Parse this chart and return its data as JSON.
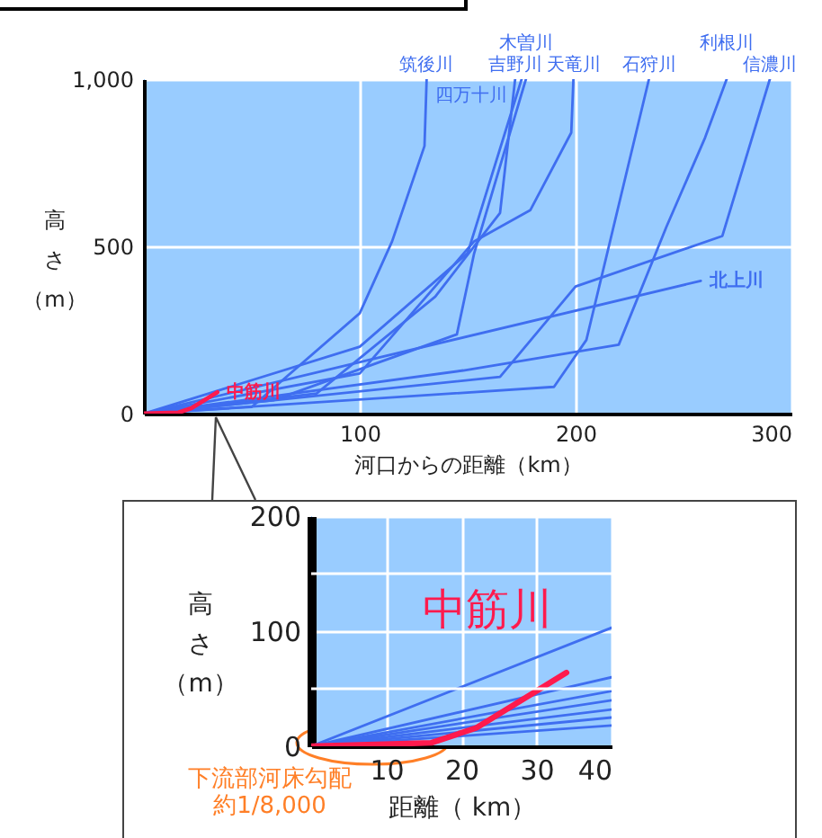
{
  "chart_data": [
    {
      "type": "line",
      "xlabel": "河口からの距離（km）",
      "ylabel": "高さ（m）",
      "xlim": [
        0,
        300
      ],
      "xticks": [
        100,
        200,
        300
      ],
      "ylim": [
        0,
        1000
      ],
      "yticks": [
        0,
        500,
        {
          "value": 1000,
          "label": "1,000"
        }
      ],
      "grid": true,
      "series": [
        {
          "name": "筑後川",
          "color": "#3f6ef0",
          "x": [
            0,
            50,
            100,
            115,
            130,
            131
          ],
          "values": [
            0,
            20,
            300,
            515,
            800,
            1000
          ]
        },
        {
          "name": "吉野川",
          "color": "#3f6ef0",
          "x": [
            0,
            80,
            135,
            165,
            172
          ],
          "values": [
            0,
            60,
            350,
            600,
            1000
          ]
        },
        {
          "name": "四万十川",
          "color": "#3f6ef0",
          "x": [
            0,
            100,
            150,
            175
          ],
          "values": [
            0,
            200,
            480,
            1000
          ]
        },
        {
          "name": "木曽川",
          "color": "#3f6ef0",
          "x": [
            0,
            60,
            145,
            153,
            177
          ],
          "values": [
            0,
            40,
            237,
            479,
            1000
          ]
        },
        {
          "name": "天竜川",
          "color": "#3f6ef0",
          "x": [
            0,
            100,
            153,
            179,
            198,
            199
          ],
          "values": [
            0,
            120,
            515,
            608,
            840,
            1000
          ]
        },
        {
          "name": "石狩川",
          "color": "#3f6ef0",
          "x": [
            0,
            190,
            205,
            234
          ],
          "values": [
            0,
            80,
            220,
            1000
          ]
        },
        {
          "name": "利根川",
          "color": "#3f6ef0",
          "x": [
            0,
            148,
            220,
            242,
            260,
            270
          ],
          "values": [
            0,
            129,
            206,
            557,
            825,
            1000
          ]
        },
        {
          "name": "信濃川",
          "color": "#3f6ef0",
          "x": [
            0,
            165,
            200,
            268,
            290
          ],
          "values": [
            0,
            110,
            380,
            531,
            1000
          ]
        },
        {
          "name": "北上川",
          "color": "#3f6ef0",
          "x": [
            0,
            258
          ],
          "values": [
            0,
            397
          ]
        },
        {
          "name": "中筋川",
          "color": "#ff1a4d",
          "x": [
            0,
            16,
            22,
            34
          ],
          "values": [
            0,
            3,
            16,
            64
          ]
        }
      ]
    },
    {
      "type": "line",
      "xlabel": "距離（ km）",
      "ylabel": "高さ（m）",
      "xlim": [
        0,
        40
      ],
      "xticks": [
        10,
        20,
        30,
        40
      ],
      "ylim": [
        0,
        200
      ],
      "yticks": [
        0,
        {
          "value": 50,
          "label": null
        },
        100,
        {
          "value": 150,
          "label": null
        },
        200
      ],
      "grid": true,
      "annotations": [
        "下流部河床勾配",
        "約1/8,000"
      ],
      "series": [
        {
          "color": "#3f6ef0",
          "x": [
            0,
            40
          ],
          "values": [
            0,
            103
          ]
        },
        {
          "color": "#3f6ef0",
          "x": [
            0,
            40
          ],
          "values": [
            0,
            60
          ]
        },
        {
          "color": "#3f6ef0",
          "x": [
            0,
            40
          ],
          "values": [
            0,
            48
          ]
        },
        {
          "color": "#3f6ef0",
          "x": [
            0,
            40
          ],
          "values": [
            0,
            40
          ]
        },
        {
          "color": "#3f6ef0",
          "x": [
            0,
            40
          ],
          "values": [
            0,
            32
          ]
        },
        {
          "color": "#3f6ef0",
          "x": [
            0,
            40
          ],
          "values": [
            0,
            25
          ]
        },
        {
          "color": "#3f6ef0",
          "x": [
            0,
            40
          ],
          "values": [
            0,
            18
          ]
        },
        {
          "name": "中筋川",
          "color": "#ff1a4d",
          "x": [
            0,
            16,
            22,
            34
          ],
          "values": [
            0,
            3,
            16,
            64
          ]
        }
      ]
    }
  ]
}
